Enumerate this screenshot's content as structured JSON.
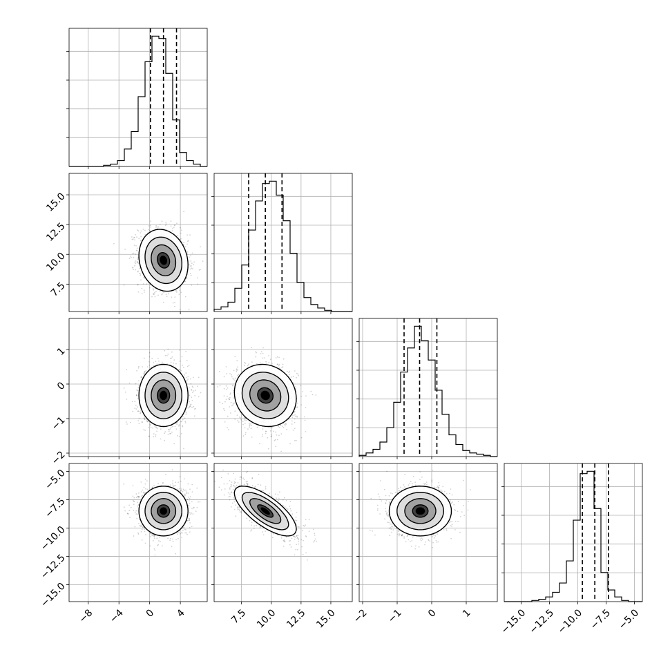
{
  "chart_data": {
    "type": "corner",
    "title": "",
    "grid": true,
    "parameters": [
      {
        "ticks": [
          -8,
          -4,
          0,
          4
        ],
        "tick_labels": [
          "−8",
          "−4",
          "0",
          "4"
        ],
        "range": [
          -10.5,
          7.5
        ],
        "mean": 1.8,
        "std": 1.6,
        "quantiles": [
          0.1,
          1.8,
          3.5
        ]
      },
      {
        "ticks": [
          7.5,
          10.0,
          12.5,
          15.0
        ],
        "tick_labels": [
          "7.5",
          "10.0",
          "12.5",
          "15.0"
        ],
        "range": [
          5.2,
          16.8
        ],
        "mean": 9.5,
        "std": 1.3,
        "quantiles": [
          8.1,
          9.5,
          10.9
        ]
      },
      {
        "ticks": [
          -2,
          -1,
          0,
          1
        ],
        "tick_labels": [
          "−2",
          "−1",
          "0",
          "1"
        ],
        "range": [
          -2.1,
          1.9
        ],
        "mean": -0.33,
        "std": 0.45,
        "quantiles": [
          -0.8,
          -0.35,
          0.15
        ]
      },
      {
        "ticks": [
          -15.0,
          -12.5,
          -10.0,
          -7.5,
          -5.0
        ],
        "tick_labels": [
          "−15.0",
          "−12.5",
          "−10.0",
          "−7.5",
          "−5.0"
        ],
        "range": [
          -16.5,
          -4.3
        ],
        "mean": -8.5,
        "std": 1.1,
        "quantiles": [
          -9.6,
          -8.5,
          -7.3
        ]
      }
    ],
    "histograms": [
      [
        0,
        0,
        0,
        0,
        0,
        1,
        2,
        5,
        15,
        30,
        60,
        90,
        112,
        110,
        80,
        40,
        12,
        5,
        2,
        0
      ],
      [
        2,
        4,
        8,
        20,
        40,
        70,
        95,
        110,
        112,
        100,
        78,
        50,
        25,
        12,
        6,
        3,
        1,
        0,
        0,
        0
      ],
      [
        1,
        3,
        6,
        12,
        24,
        45,
        70,
        90,
        108,
        96,
        80,
        55,
        35,
        18,
        10,
        5,
        3,
        2,
        1,
        0
      ],
      [
        0,
        0,
        0,
        0,
        1,
        2,
        4,
        8,
        16,
        35,
        70,
        110,
        112,
        80,
        25,
        10,
        4,
        1,
        0,
        0
      ]
    ],
    "correlations": {
      "1-0": -0.15,
      "2-0": 0.0,
      "2-1": -0.1,
      "3-0": 0.0,
      "3-1": -0.72,
      "3-2": 0.0
    }
  }
}
